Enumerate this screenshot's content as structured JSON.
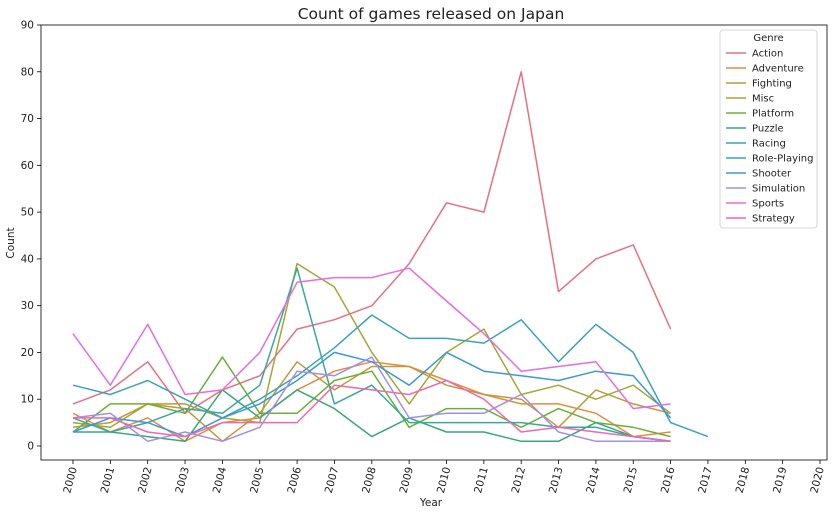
{
  "chart_data": {
    "type": "line",
    "title": "Count of games released on Japan",
    "xlabel": "Year",
    "ylabel": "Count",
    "xlim": [
      2000,
      2020
    ],
    "ylim": [
      0,
      90
    ],
    "x_ticks": [
      "2000",
      "2001",
      "2002",
      "2003",
      "2004",
      "2005",
      "2006",
      "2007",
      "2008",
      "2009",
      "2010",
      "2011",
      "2012",
      "2013",
      "2014",
      "2015",
      "2016",
      "2017",
      "2018",
      "2019",
      "2020"
    ],
    "y_ticks": [
      "0",
      "10",
      "20",
      "30",
      "40",
      "50",
      "60",
      "70",
      "80",
      "90"
    ],
    "grid": false,
    "legend": {
      "title": "Genre",
      "placement": "top-right"
    },
    "series": [
      {
        "name": "Action",
        "color": "#e8707f",
        "x": [
          2000,
          2001,
          2002,
          2003,
          2004,
          2005,
          2006,
          2007,
          2008,
          2009,
          2010,
          2011,
          2012,
          2013,
          2014,
          2015,
          2016
        ],
        "y": [
          9,
          12,
          18,
          7,
          12,
          15,
          25,
          27,
          30,
          39,
          52,
          50,
          80,
          33,
          40,
          43,
          25
        ]
      },
      {
        "name": "Adventure",
        "color": "#e08e42",
        "x": [
          2000,
          2001,
          2002,
          2003,
          2004,
          2005,
          2006,
          2007,
          2008,
          2009,
          2010,
          2011,
          2012,
          2013,
          2014,
          2015,
          2016
        ],
        "y": [
          7,
          3,
          6,
          1,
          5,
          6,
          12,
          16,
          18,
          17,
          14,
          11,
          9,
          9,
          7,
          2,
          3
        ]
      },
      {
        "name": "Fighting",
        "color": "#c09a39",
        "x": [
          2000,
          2001,
          2002,
          2003,
          2004,
          2005,
          2006,
          2007,
          2008,
          2009,
          2010,
          2011,
          2012,
          2013,
          2014,
          2015,
          2016
        ],
        "y": [
          4,
          5,
          9,
          8,
          1,
          7,
          18,
          12,
          17,
          17,
          13,
          11,
          10,
          4,
          12,
          9,
          7
        ]
      },
      {
        "name": "Misc",
        "color": "#a7a533",
        "x": [
          2000,
          2001,
          2002,
          2003,
          2004,
          2005,
          2006,
          2007,
          2008,
          2009,
          2010,
          2011,
          2012,
          2013,
          2014,
          2015,
          2016
        ],
        "y": [
          5,
          4,
          9,
          9,
          6,
          5,
          39,
          34,
          20,
          9,
          20,
          25,
          11,
          13,
          10,
          13,
          7
        ]
      },
      {
        "name": "Platform",
        "color": "#6ab038",
        "x": [
          2000,
          2001,
          2002,
          2003,
          2004,
          2005,
          2006,
          2007,
          2008,
          2009,
          2010,
          2011,
          2012,
          2013,
          2014,
          2015,
          2016
        ],
        "y": [
          3,
          9,
          9,
          7,
          19,
          7,
          7,
          14,
          16,
          4,
          8,
          8,
          4,
          8,
          5,
          4,
          2
        ]
      },
      {
        "name": "Puzzle",
        "color": "#3ba77a",
        "x": [
          2000,
          2001,
          2002,
          2003,
          2004,
          2005,
          2006,
          2007,
          2008,
          2009,
          2010,
          2011,
          2012,
          2013,
          2014,
          2015,
          2016
        ],
        "y": [
          3,
          3,
          2,
          1,
          12,
          6,
          12,
          8,
          2,
          6,
          3,
          3,
          1,
          1,
          5,
          2,
          1
        ]
      },
      {
        "name": "Racing",
        "color": "#39a89b",
        "x": [
          2000,
          2001,
          2002,
          2003,
          2004,
          2005,
          2006,
          2007,
          2008,
          2009,
          2010,
          2011,
          2012,
          2013,
          2014,
          2015,
          2016
        ],
        "y": [
          6,
          3,
          5,
          8,
          7,
          13,
          38,
          9,
          13,
          5,
          5,
          5,
          5,
          4,
          4,
          2,
          1
        ]
      },
      {
        "name": "Role-Playing",
        "color": "#3aa3b9",
        "x": [
          2000,
          2001,
          2002,
          2003,
          2004,
          2005,
          2006,
          2007,
          2008,
          2009,
          2010,
          2011,
          2012,
          2013,
          2014,
          2015,
          2016,
          2017
        ],
        "y": [
          13,
          11,
          14,
          10,
          6,
          10,
          15,
          21,
          28,
          23,
          23,
          22,
          27,
          18,
          26,
          20,
          5,
          2
        ]
      },
      {
        "name": "Shooter",
        "color": "#3c98d8",
        "x": [
          2000,
          2001,
          2002,
          2003,
          2004,
          2005,
          2006,
          2007,
          2008,
          2009,
          2010,
          2011,
          2012,
          2013,
          2014,
          2015,
          2016
        ],
        "y": [
          3,
          6,
          5,
          2,
          6,
          9,
          14,
          20,
          18,
          13,
          20,
          16,
          15,
          14,
          16,
          15,
          6
        ]
      },
      {
        "name": "Simulation",
        "color": "#a48ee8",
        "x": [
          2000,
          2001,
          2002,
          2003,
          2004,
          2005,
          2006,
          2007,
          2008,
          2009,
          2010,
          2011,
          2012,
          2013,
          2014,
          2015,
          2016
        ],
        "y": [
          6,
          7,
          1,
          3,
          1,
          4,
          16,
          15,
          19,
          6,
          7,
          7,
          11,
          3,
          1,
          1,
          1
        ]
      },
      {
        "name": "Sports",
        "color": "#e66ce4",
        "x": [
          2000,
          2001,
          2002,
          2003,
          2004,
          2005,
          2006,
          2007,
          2008,
          2009,
          2010,
          2011,
          2012,
          2013,
          2014,
          2015,
          2016
        ],
        "y": [
          24,
          13,
          26,
          11,
          12,
          20,
          35,
          36,
          36,
          38,
          31,
          24,
          16,
          17,
          18,
          8,
          9
        ]
      },
      {
        "name": "Strategy",
        "color": "#ec69b3",
        "x": [
          2000,
          2001,
          2002,
          2003,
          2004,
          2005,
          2006,
          2007,
          2008,
          2009,
          2010,
          2011,
          2012,
          2013,
          2014,
          2015,
          2016
        ],
        "y": [
          6,
          6,
          3,
          2,
          5,
          5,
          5,
          13,
          12,
          11,
          14,
          10,
          3,
          4,
          3,
          2,
          1
        ]
      }
    ]
  }
}
